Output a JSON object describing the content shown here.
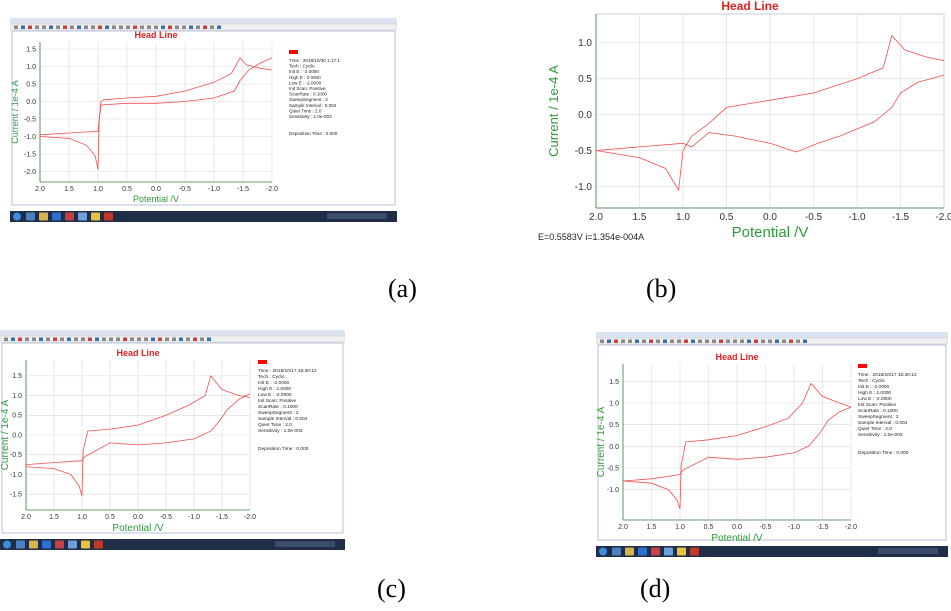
{
  "captions": [
    "(a)",
    "(b)",
    "(c)",
    "(d)"
  ],
  "screens": {
    "a": {
      "info_lines": [
        "Time : 2018/10/30 1:17:1",
        "Tech : Cyclic",
        "Init E : -2.0000",
        "High E : 2.0000",
        "Low E : -2.0000",
        "Init Scan: Positive",
        "ScanRate : 0.1000",
        "SweepSegment : 2",
        "Sample Interval : 0.004",
        "Quiet Time : 2.0",
        "Sensitivity : 1.0e-003"
      ],
      "deposition": "Deposition Time : 0.000"
    },
    "b": {
      "status": "E=0.5583V  i=1.354e-004A"
    },
    "c": {
      "info_lines": [
        "Time : 2018/10/17 16:30:12",
        "Tech : Cyclic",
        "Init E : -2.0000",
        "High E : 2.0000",
        "Low E : -2.0000",
        "Init Scan: Positive",
        "ScanRate : 0.1000",
        "SweepSegment : 2",
        "Sample Interval : 0.004",
        "Quiet Time : 2.0",
        "Sensitivity : 1.0e-003"
      ],
      "deposition": "Deposition Time : 0.000"
    },
    "d": {
      "info_lines": [
        "Time : 2018/10/17 16:30:12",
        "Tech : Cyclic",
        "Init E : -2.0000",
        "High E : 2.0000",
        "Low E : -2.0000",
        "Init Scan: Positive",
        "ScanRate : 0.1000",
        "SweepSegment : 2",
        "Sample Interval : 0.004",
        "Quiet Time : 2.0",
        "Sensitivity : 1.0e-003"
      ],
      "deposition": "Deposition Time : 0.000"
    }
  },
  "chart_data": [
    {
      "id": "a",
      "type": "line",
      "title": "Head Line",
      "xlabel": "Potential /V",
      "ylabel": "Current / 1e-4 A",
      "xlim": [
        2.0,
        -2.0
      ],
      "ylim": [
        -2.3,
        1.7
      ],
      "x_ticks": [
        "2.0",
        "1.5",
        "1.0",
        "0.5",
        "0.0",
        "-0.5",
        "-1.0",
        "-1.5",
        "-2.0"
      ],
      "y_ticks": [
        "1.5",
        "1.0",
        "0.5",
        "0.0",
        "-0.5",
        "-1.0",
        "-1.5",
        "-2.0"
      ],
      "series": [
        {
          "values": [
            [
              2.0,
              -1.0
            ],
            [
              1.5,
              -1.05
            ],
            [
              1.2,
              -1.25
            ],
            [
              1.05,
              -1.55
            ],
            [
              1.0,
              -1.95
            ],
            [
              0.98,
              -0.5
            ],
            [
              0.95,
              0.0
            ],
            [
              0.9,
              0.05
            ],
            [
              0.5,
              0.1
            ],
            [
              0.0,
              0.15
            ],
            [
              -0.5,
              0.3
            ],
            [
              -1.0,
              0.55
            ],
            [
              -1.3,
              0.8
            ],
            [
              -1.45,
              1.25
            ],
            [
              -1.55,
              1.05
            ],
            [
              -1.8,
              0.95
            ],
            [
              -2.0,
              0.9
            ]
          ]
        },
        {
          "values": [
            [
              -2.0,
              1.25
            ],
            [
              -1.8,
              1.1
            ],
            [
              -1.6,
              0.9
            ],
            [
              -1.45,
              0.6
            ],
            [
              -1.35,
              0.3
            ],
            [
              -1.0,
              0.1
            ],
            [
              -0.5,
              0.0
            ],
            [
              0.0,
              -0.05
            ],
            [
              0.5,
              -0.05
            ],
            [
              0.95,
              -0.1
            ],
            [
              1.0,
              -0.85
            ],
            [
              1.5,
              -0.9
            ],
            [
              2.0,
              -0.95
            ]
          ]
        }
      ]
    },
    {
      "id": "b",
      "type": "line",
      "title": "Head Line",
      "xlabel": "Potential /V",
      "ylabel": "Current / 1e-4 A",
      "xlim": [
        2.0,
        -2.0
      ],
      "ylim": [
        -1.3,
        1.4
      ],
      "x_ticks": [
        "2.0",
        "1.5",
        "1.0",
        "0.5",
        "0.0",
        "-0.5",
        "-1.0",
        "-1.5",
        "-2.0"
      ],
      "y_ticks": [
        "1.0",
        "0.5",
        "0.0",
        "-0.5",
        "-1.0"
      ],
      "series": [
        {
          "values": [
            [
              2.0,
              -0.5
            ],
            [
              1.5,
              -0.6
            ],
            [
              1.2,
              -0.75
            ],
            [
              1.05,
              -1.05
            ],
            [
              1.0,
              -0.5
            ],
            [
              0.9,
              -0.3
            ],
            [
              0.7,
              -0.12
            ],
            [
              0.5,
              0.1
            ],
            [
              0.0,
              0.2
            ],
            [
              -0.5,
              0.3
            ],
            [
              -1.0,
              0.5
            ],
            [
              -1.3,
              0.65
            ],
            [
              -1.4,
              1.1
            ],
            [
              -1.55,
              0.9
            ],
            [
              -1.8,
              0.8
            ],
            [
              -2.0,
              0.75
            ]
          ]
        },
        {
          "values": [
            [
              -2.0,
              0.55
            ],
            [
              -1.7,
              0.45
            ],
            [
              -1.5,
              0.3
            ],
            [
              -1.4,
              0.1
            ],
            [
              -1.2,
              -0.1
            ],
            [
              -0.8,
              -0.3
            ],
            [
              -0.55,
              -0.4
            ],
            [
              -0.3,
              -0.52
            ],
            [
              0.0,
              -0.4
            ],
            [
              0.4,
              -0.3
            ],
            [
              0.7,
              -0.25
            ],
            [
              0.9,
              -0.45
            ],
            [
              1.0,
              -0.4
            ],
            [
              1.5,
              -0.45
            ],
            [
              2.0,
              -0.5
            ]
          ]
        }
      ]
    },
    {
      "id": "c",
      "type": "line",
      "title": "Head Line",
      "xlabel": "Potential /V",
      "ylabel": "Current / 1e-4 A",
      "xlim": [
        2.0,
        -2.0
      ],
      "ylim": [
        -1.9,
        1.9
      ],
      "x_ticks": [
        "2.0",
        "1.5",
        "1.0",
        "0.5",
        "0.0",
        "-0.5",
        "-1.0",
        "-1.5",
        "-2.0"
      ],
      "y_ticks": [
        "1.5",
        "1.0",
        "0.5",
        "0.0",
        "-0.5",
        "-1.0",
        "-1.5"
      ],
      "series": [
        {
          "values": [
            [
              2.0,
              -0.8
            ],
            [
              1.5,
              -0.85
            ],
            [
              1.2,
              -1.0
            ],
            [
              1.05,
              -1.3
            ],
            [
              1.0,
              -1.55
            ],
            [
              0.98,
              -0.4
            ],
            [
              0.9,
              0.1
            ],
            [
              0.5,
              0.15
            ],
            [
              0.0,
              0.25
            ],
            [
              -0.5,
              0.5
            ],
            [
              -0.9,
              0.75
            ],
            [
              -1.2,
              1.0
            ],
            [
              -1.3,
              1.5
            ],
            [
              -1.5,
              1.15
            ],
            [
              -1.8,
              1.0
            ],
            [
              -2.0,
              0.95
            ]
          ]
        },
        {
          "values": [
            [
              -2.0,
              1.05
            ],
            [
              -1.8,
              0.9
            ],
            [
              -1.6,
              0.65
            ],
            [
              -1.45,
              0.35
            ],
            [
              -1.3,
              0.1
            ],
            [
              -1.0,
              -0.1
            ],
            [
              -0.5,
              -0.2
            ],
            [
              0.0,
              -0.25
            ],
            [
              0.5,
              -0.2
            ],
            [
              0.95,
              -0.55
            ],
            [
              1.0,
              -0.65
            ],
            [
              1.5,
              -0.7
            ],
            [
              2.0,
              -0.75
            ]
          ]
        }
      ]
    },
    {
      "id": "d",
      "type": "line",
      "title": "Head Line",
      "xlabel": "Potential /V",
      "ylabel": "Current / 1e-4 A",
      "xlim": [
        2.0,
        -2.0
      ],
      "ylim": [
        -1.7,
        1.9
      ],
      "x_ticks": [
        "2.0",
        "1.5",
        "1.0",
        "0.5",
        "0.0",
        "-0.5",
        "-1.0",
        "-1.5",
        "-2.0"
      ],
      "y_ticks": [
        "1.5",
        "1.0",
        "0.5",
        "0.0",
        "-0.5",
        "-1.0"
      ],
      "series": [
        {
          "values": [
            [
              2.0,
              -0.8
            ],
            [
              1.5,
              -0.85
            ],
            [
              1.2,
              -1.0
            ],
            [
              1.05,
              -1.25
            ],
            [
              1.0,
              -1.45
            ],
            [
              0.98,
              -0.45
            ],
            [
              0.9,
              0.1
            ],
            [
              0.5,
              0.15
            ],
            [
              0.0,
              0.25
            ],
            [
              -0.5,
              0.45
            ],
            [
              -0.9,
              0.65
            ],
            [
              -1.15,
              1.0
            ],
            [
              -1.3,
              1.45
            ],
            [
              -1.5,
              1.15
            ],
            [
              -1.8,
              1.0
            ],
            [
              -2.0,
              0.9
            ]
          ]
        },
        {
          "values": [
            [
              -2.0,
              0.9
            ],
            [
              -1.8,
              0.8
            ],
            [
              -1.6,
              0.6
            ],
            [
              -1.45,
              0.3
            ],
            [
              -1.25,
              0.0
            ],
            [
              -1.0,
              -0.15
            ],
            [
              -0.5,
              -0.25
            ],
            [
              0.0,
              -0.3
            ],
            [
              0.5,
              -0.25
            ],
            [
              0.95,
              -0.55
            ],
            [
              1.0,
              -0.65
            ],
            [
              1.5,
              -0.75
            ],
            [
              2.0,
              -0.8
            ]
          ]
        }
      ]
    }
  ]
}
